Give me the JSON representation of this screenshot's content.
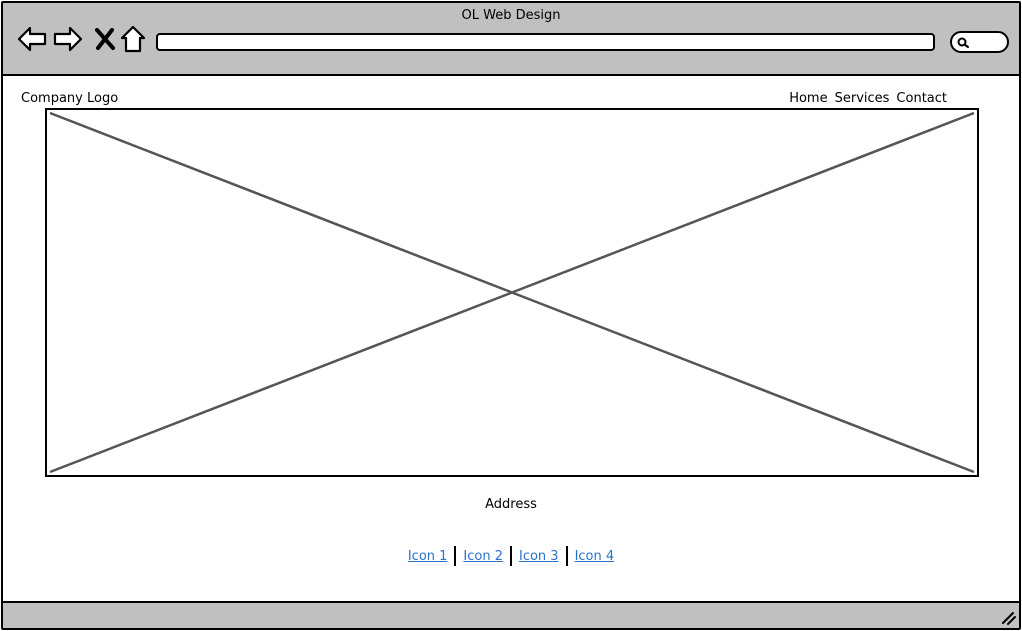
{
  "window": {
    "title": "OL Web Design"
  },
  "toolbar": {
    "back_icon": "back-arrow-icon",
    "forward_icon": "forward-arrow-icon",
    "stop_icon": "close-x-icon",
    "home_icon": "home-icon",
    "url_value": "",
    "search_icon": "search-icon"
  },
  "header": {
    "logo": "Company Logo",
    "nav": [
      "Home",
      "Services",
      "Contact"
    ]
  },
  "hero": {
    "placeholder": "image-placeholder"
  },
  "footer": {
    "address": "Address",
    "links": [
      "Icon 1",
      "Icon 2",
      "Icon 3",
      "Icon 4"
    ]
  },
  "colors": {
    "chrome": "#c0c0c0",
    "link": "#2a72c9",
    "placeholder_line": "#555555"
  }
}
